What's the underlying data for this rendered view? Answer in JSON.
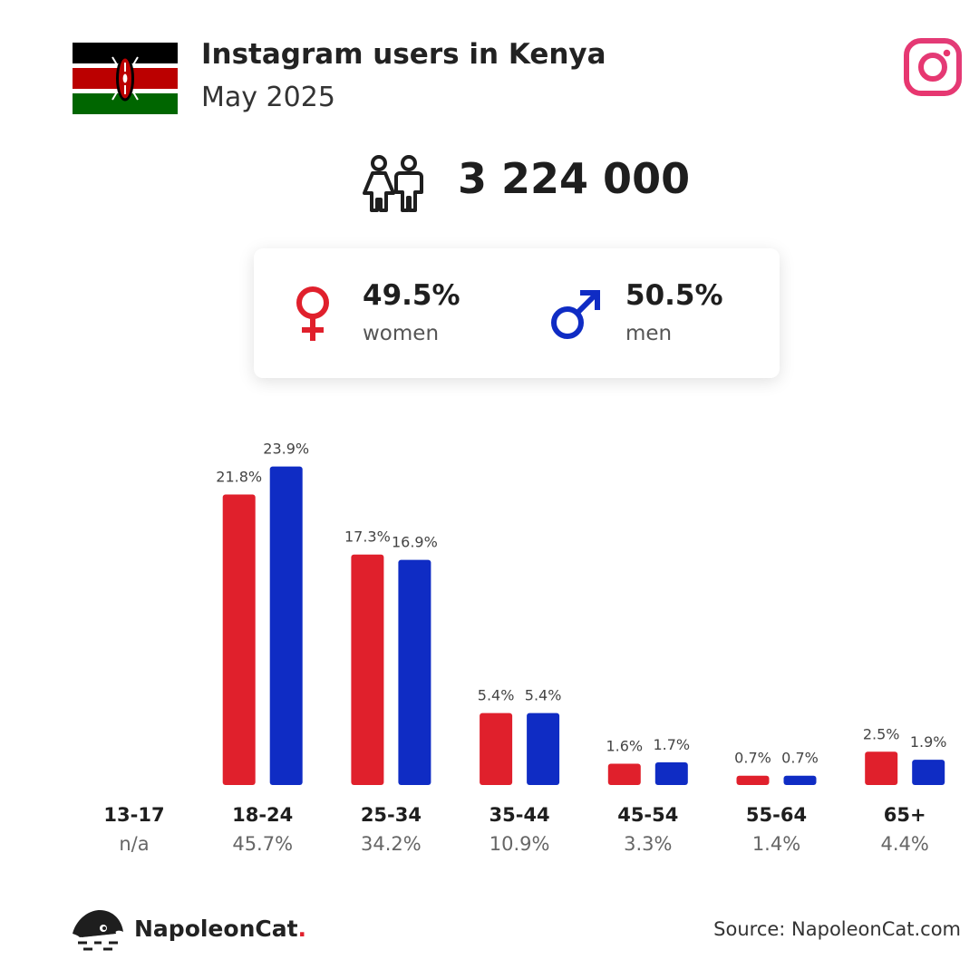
{
  "header": {
    "title": "Instagram users in Kenya",
    "subtitle": "May 2025",
    "flag_icon": "kenya-flag",
    "platform_icon": "instagram-icon"
  },
  "total": {
    "icon": "users-icon",
    "value": "3 224 000"
  },
  "gender": {
    "women": {
      "percent": "49.5%",
      "label": "women",
      "icon": "female-symbol-icon",
      "color": "#e0202c"
    },
    "men": {
      "percent": "50.5%",
      "label": "men",
      "icon": "male-symbol-icon",
      "color": "#0f2cc4"
    }
  },
  "chart_data": {
    "type": "bar",
    "categories": [
      "13-17",
      "18-24",
      "25-34",
      "35-44",
      "45-54",
      "55-64",
      "65+"
    ],
    "category_totals": [
      "n/a",
      "45.7%",
      "34.2%",
      "10.9%",
      "3.3%",
      "1.4%",
      "4.4%"
    ],
    "series": [
      {
        "name": "women",
        "color": "#e0202c",
        "values": [
          null,
          21.8,
          17.3,
          5.4,
          1.6,
          0.7,
          2.5
        ]
      },
      {
        "name": "men",
        "color": "#0f2cc4",
        "values": [
          null,
          23.9,
          16.9,
          5.4,
          1.7,
          0.7,
          1.9
        ]
      }
    ],
    "value_suffix": "%",
    "grid": false,
    "ylim": [
      0,
      25
    ]
  },
  "footer": {
    "brand": "NapoleonCat",
    "brand_dot": ".",
    "logo_icon": "napoleoncat-logo",
    "source": "Source: NapoleonCat.com"
  }
}
